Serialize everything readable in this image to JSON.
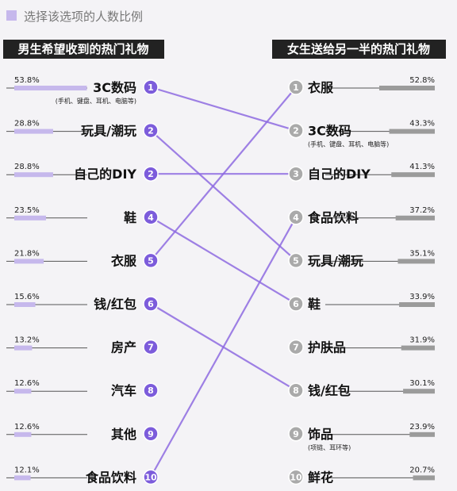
{
  "legend": {
    "text": "选择该选项的人数比例"
  },
  "chart_data": [
    {
      "type": "bar",
      "title": "男生希望收到的热门礼物",
      "unit": "%",
      "xlim": [
        0,
        100
      ],
      "categories": [
        "3C数码",
        "玩具/潮玩",
        "自己的DIY",
        "鞋",
        "衣服",
        "钱/红包",
        "房产",
        "汽车",
        "其他",
        "食品饮料"
      ],
      "sublabels": [
        "(手机、键盘、耳机、电脑等)",
        "",
        "",
        "",
        "",
        "",
        "",
        "",
        "",
        ""
      ],
      "values": [
        53.8,
        28.8,
        28.8,
        23.5,
        21.8,
        15.6,
        13.2,
        12.6,
        12.6,
        12.1
      ],
      "value_labels": [
        "53.8%",
        "28.8%",
        "28.8%",
        "23.5%",
        "21.8%",
        "15.6%",
        "13.2%",
        "12.6%",
        "12.6%",
        "12.1%"
      ],
      "ranks": [
        "1",
        "2",
        "2",
        "4",
        "5",
        "6",
        "7",
        "8",
        "9",
        "10"
      ],
      "color": "#c6b8ec",
      "badge_color": "#7c5cdb"
    },
    {
      "type": "bar",
      "title": "女生送给另一半的热门礼物",
      "unit": "%",
      "xlim": [
        0,
        100
      ],
      "categories": [
        "衣服",
        "3C数码",
        "自己的DIY",
        "食品饮料",
        "玩具/潮玩",
        "鞋",
        "护肤品",
        "钱/红包",
        "饰品",
        "鲜花"
      ],
      "sublabels": [
        "",
        "(手机、键盘、耳机、电脑等)",
        "",
        "",
        "",
        "",
        "",
        "",
        "(项链、耳环等)",
        ""
      ],
      "values": [
        52.8,
        43.3,
        41.3,
        37.2,
        35.1,
        33.9,
        31.9,
        30.1,
        23.9,
        20.7
      ],
      "value_labels": [
        "52.8%",
        "43.3%",
        "41.3%",
        "37.2%",
        "35.1%",
        "33.9%",
        "31.9%",
        "30.1%",
        "23.9%",
        "20.7%"
      ],
      "ranks": [
        "1",
        "2",
        "3",
        "4",
        "5",
        "6",
        "7",
        "8",
        "9",
        "10"
      ],
      "color": "#9b9b9b",
      "badge_color": "#aaaaaa"
    }
  ],
  "links": [
    {
      "from": 0,
      "to": 1
    },
    {
      "from": 1,
      "to": 4
    },
    {
      "from": 2,
      "to": 2
    },
    {
      "from": 3,
      "to": 5
    },
    {
      "from": 4,
      "to": 0
    },
    {
      "from": 5,
      "to": 7
    },
    {
      "from": 9,
      "to": 3
    }
  ],
  "colors": {
    "header_bg": "#222222",
    "link": "#8d6ae0",
    "link_faded": "#d8cdf2",
    "axis": "#555555"
  }
}
